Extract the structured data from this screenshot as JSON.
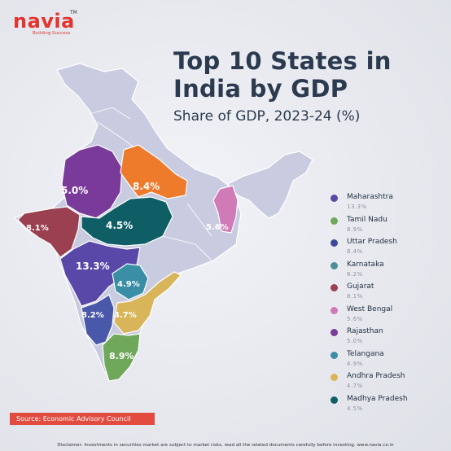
{
  "brand": {
    "name": "navia",
    "tm": "TM",
    "tagline": "Building Success",
    "accent": "#e3342f"
  },
  "title_line1": "Top 10 States in",
  "title_line2": "India by GDP",
  "subtitle": "Share of GDP, 2023-24 (%)",
  "source": "Source: Economic Advisory Council",
  "disclaimer": "Disclaimer: Investments in securities market are subject to market risks, read all the related documents carefully before investing. www.navia.co.in",
  "states": [
    {
      "name": "Maharashtra",
      "value": "13.3%",
      "map_label": "13.3%",
      "color": "#5a48a8"
    },
    {
      "name": "Tamil Nadu",
      "value": "8.9%",
      "map_label": "8.9%",
      "color": "#6fa85a"
    },
    {
      "name": "Uttar Pradesh",
      "value": "8.4%",
      "map_label": "8.4%",
      "color": "#ee7a2c"
    },
    {
      "name": "Karnataka",
      "value": "8.2%",
      "map_label": "8.2%",
      "color": "#4a58aa"
    },
    {
      "name": "Gujarat",
      "value": "8.1%",
      "map_label": "8.1%",
      "color": "#9a4050"
    },
    {
      "name": "West Bengal",
      "value": "5.6%",
      "map_label": "5.6%",
      "color": "#d07ab8"
    },
    {
      "name": "Rajasthan",
      "value": "5.0%",
      "map_label": "5.0%",
      "color": "#7a3a9a"
    },
    {
      "name": "Telangana",
      "value": "4.9%",
      "map_label": "4.9%",
      "color": "#3a8ea6"
    },
    {
      "name": "Andhra Pradesh",
      "value": "4.7%",
      "map_label": "4.7%",
      "color": "#d9b55a"
    },
    {
      "name": "Madhya Pradesh",
      "value": "4.5%",
      "map_label": "4.5%",
      "color": "#0f5e66"
    }
  ],
  "colors": {
    "base_state": "#c9cce0",
    "border": "#ffffff",
    "title": "#2b3a4f",
    "source_bg": "#e24b3f"
  }
}
